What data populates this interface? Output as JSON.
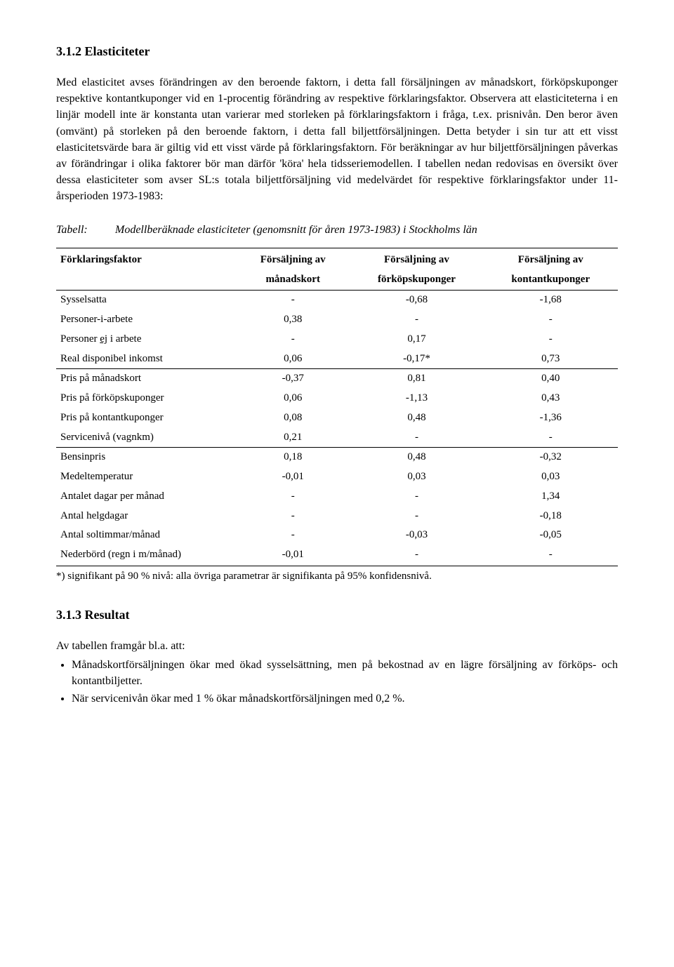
{
  "section1": {
    "heading": "3.1.2  Elasticiteter",
    "paragraph": "Med elasticitet avses förändringen av den beroende faktorn, i detta fall försäljningen av månadskort, förköpskuponger respektive kontantkuponger vid en 1-procentig förändring av respektive förklaringsfaktor. Observera att elasticiteterna i en linjär modell inte är konstanta utan varierar med storleken på förklaringsfaktorn i fråga, t.ex. prisnivån. Den beror även (omvänt) på storleken på den beroende faktorn, i detta fall biljettförsäljningen. Detta betyder i sin tur att ett visst elasticitetsvärde bara är giltig vid ett visst värde på förklaringsfaktorn. För beräkningar av hur biljettförsäljningen påverkas av förändringar i olika faktorer bör man därför 'köra' hela tidsseriemodellen. I  tabellen nedan redovisas en översikt över dessa elasticiteter som avser SL:s totala biljettförsäljning vid medelvärdet för respektive förklaringsfaktor under 11-årsperioden 1973-1983:"
  },
  "table": {
    "caption_lead": "Tabell:",
    "caption": "Modellberäknade elasticiteter (genomsnitt för åren 1973-1983) i Stockholms län",
    "header": {
      "c0": "Förklaringsfaktor",
      "c1a": "Försäljning av",
      "c1b": "månadskort",
      "c2a": "Försäljning av",
      "c2b": "förköpskuponger",
      "c3a": "Försäljning av",
      "c3b": "kontantkuponger"
    },
    "rows": [
      {
        "label": "Sysselsatta",
        "c1": "-",
        "c2": "-0,68",
        "c3": "-1,68"
      },
      {
        "label": "Personer-i-arbete",
        "c1": "0,38",
        "c2": "-",
        "c3": "-"
      },
      {
        "label_pre": "Personer ",
        "label_u": "ej",
        "label_post": " i arbete",
        "c1": "-",
        "c2": "0,17",
        "c3": "-"
      },
      {
        "label": "Real disponibel inkomst",
        "c1": "0,06",
        "c2": "-0,17*",
        "c3": "0,73",
        "group_end": true
      },
      {
        "label": "Pris på månadskort",
        "c1": "-0,37",
        "c2": "0,81",
        "c3": "0,40"
      },
      {
        "label": "Pris på förköpskuponger",
        "c1": "0,06",
        "c2": "-1,13",
        "c3": "0,43"
      },
      {
        "label": "Pris på kontantkuponger",
        "c1": "0,08",
        "c2": "0,48",
        "c3": "-1,36"
      },
      {
        "label": "Servicenivå (vagnkm)",
        "c1": "0,21",
        "c2": "-",
        "c3": "-",
        "group_end": true
      },
      {
        "label": "Bensinpris",
        "c1": "0,18",
        "c2": "0,48",
        "c3": "-0,32"
      },
      {
        "label": "Medeltemperatur",
        "c1": "-0,01",
        "c2": "0,03",
        "c3": "0,03"
      },
      {
        "label": "Antalet dagar per månad",
        "c1": "-",
        "c2": "-",
        "c3": "1,34"
      },
      {
        "label": "Antal helgdagar",
        "c1": "-",
        "c2": "-",
        "c3": "-0,18"
      },
      {
        "label": "Antal soltimmar/månad",
        "c1": "-",
        "c2": "-0,03",
        "c3": "-0,05"
      },
      {
        "label": "Nederbörd (regn i m/månad)",
        "c1": "-0,01",
        "c2": "-",
        "c3": "-",
        "last": true
      }
    ],
    "footnote": "*) signifikant på 90 % nivå: alla övriga parametrar är signifikanta på 95% konfidensnivå."
  },
  "section2": {
    "heading": "3.1.3  Resultat",
    "intro": "Av tabellen framgår bl.a. att:",
    "bullets": [
      "Månadskortförsäljningen ökar med ökad sysselsättning, men på bekostnad av en lägre försäljning av förköps- och kontantbiljetter.",
      "När servicenivån ökar med 1 % ökar månadskortförsäljningen med 0,2 %."
    ]
  }
}
